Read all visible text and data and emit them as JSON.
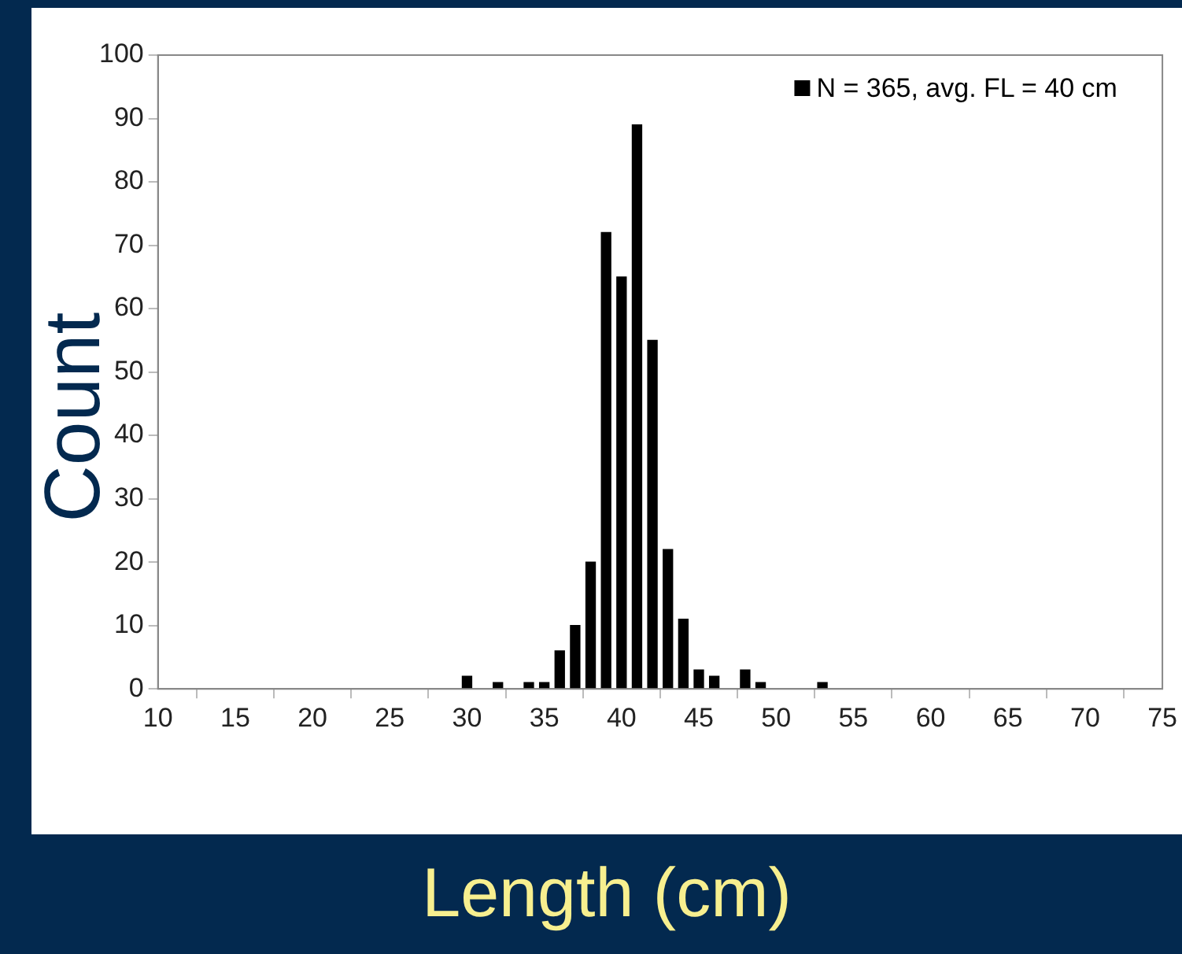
{
  "chart_data": {
    "type": "bar",
    "xlabel": "Length (cm)",
    "ylabel": "Count",
    "x": [
      30,
      32,
      34,
      35,
      36,
      37,
      38,
      39,
      40,
      41,
      42,
      43,
      44,
      45,
      46,
      48,
      49,
      53
    ],
    "series": [
      {
        "name": "N = 365, avg. FL = 40 cm",
        "color": "#000000",
        "values": [
          2,
          1,
          1,
          1,
          6,
          10,
          20,
          72,
          65,
          89,
          55,
          22,
          11,
          3,
          2,
          3,
          1,
          1
        ]
      }
    ],
    "xlim": [
      10,
      75
    ],
    "xticks": [
      10,
      15,
      20,
      25,
      30,
      35,
      40,
      45,
      50,
      55,
      60,
      65,
      70,
      75
    ],
    "ylim": [
      0,
      100
    ],
    "yticks": [
      0,
      10,
      20,
      30,
      40,
      50,
      60,
      70,
      80,
      90,
      100
    ],
    "grid": false,
    "legend": "top right"
  }
}
